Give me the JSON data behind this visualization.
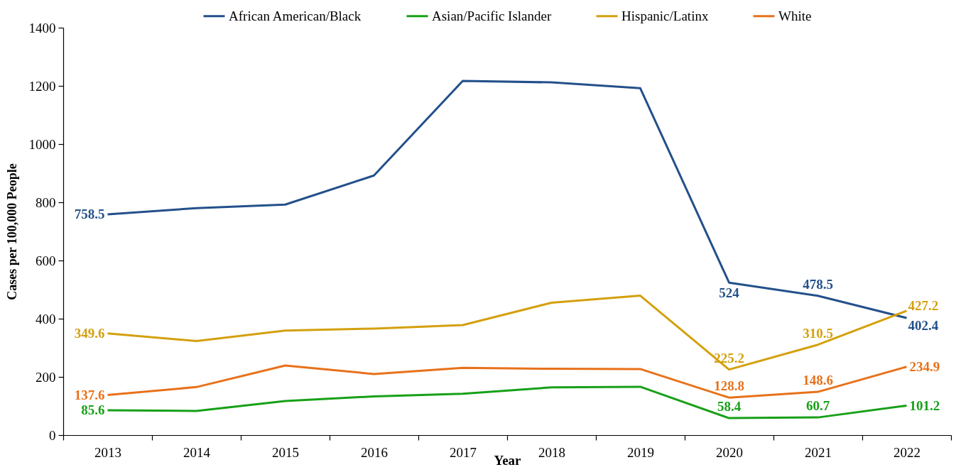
{
  "chart_data": {
    "type": "line",
    "xlabel": "Year",
    "ylabel": "Cases per 100,000 People",
    "categories": [
      "2013",
      "2014",
      "2015",
      "2016",
      "2017",
      "2018",
      "2019",
      "2020",
      "2021",
      "2022"
    ],
    "ylim": [
      0,
      1400
    ],
    "yticks": [
      0,
      200,
      400,
      600,
      800,
      1000,
      1200,
      1400
    ],
    "legend": "top",
    "marker": "none",
    "line_style": "solid",
    "series": [
      {
        "name": "African American/Black",
        "color": "#23508a",
        "values": [
          758.5,
          780,
          792,
          892,
          1217,
          1212,
          1192,
          524,
          478.5,
          402.4
        ],
        "value_labels": [
          "758.5",
          null,
          null,
          null,
          null,
          null,
          null,
          "524",
          "478.5",
          "402.4"
        ]
      },
      {
        "name": "Asian/Pacific Islander",
        "color": "#17a017",
        "values": [
          85.6,
          83,
          117,
          133,
          142,
          164,
          166,
          58.4,
          60.7,
          101.2
        ],
        "value_labels": [
          "85.6",
          null,
          null,
          null,
          null,
          null,
          null,
          "58.4",
          "60.7",
          "101.2"
        ]
      },
      {
        "name": "Hispanic/Latinx",
        "color": "#d4a00e",
        "values": [
          349.6,
          323,
          359,
          366,
          378,
          455,
          479,
          225.2,
          310.5,
          427.2
        ],
        "value_labels": [
          "349.6",
          null,
          null,
          null,
          null,
          null,
          null,
          "225.2",
          "310.5",
          "427.2"
        ]
      },
      {
        "name": "White",
        "color": "#e8711a",
        "values": [
          137.6,
          165,
          239,
          210,
          231,
          228,
          227,
          128.8,
          148.6,
          234.9
        ],
        "value_labels": [
          "137.6",
          null,
          null,
          null,
          null,
          null,
          null,
          "128.8",
          "148.6",
          "234.9"
        ]
      }
    ]
  }
}
